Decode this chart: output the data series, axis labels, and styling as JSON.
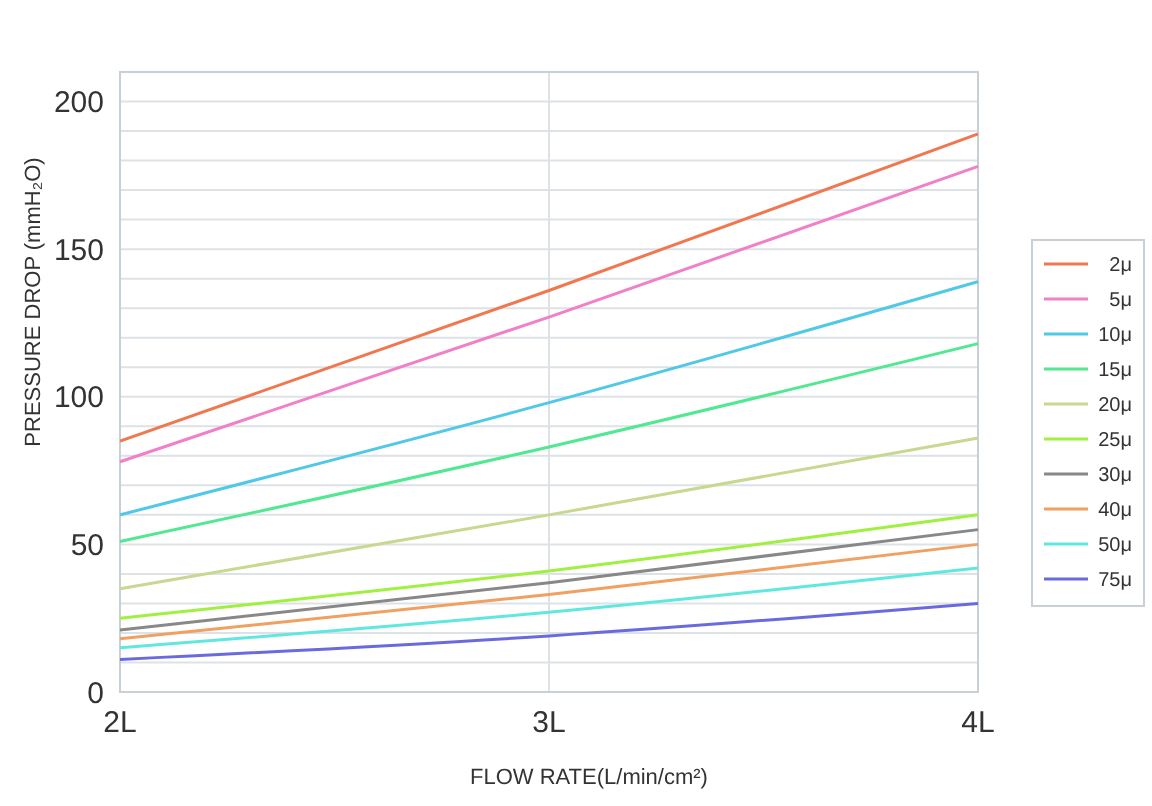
{
  "chart_data": {
    "type": "line",
    "xlabel": "FLOW RATE(L/min/cm²)",
    "ylabel": "PRESSURE DROP (mmH₂O)",
    "x": [
      2,
      3,
      4
    ],
    "xlim": [
      2,
      4
    ],
    "xticks": [
      {
        "value": 2,
        "label": "2L"
      },
      {
        "value": 3,
        "label": "3L"
      },
      {
        "value": 4,
        "label": "4L"
      }
    ],
    "ylim": [
      0,
      210
    ],
    "yticks": [
      0,
      {
        "value": 10,
        "label": null
      },
      {
        "value": 20,
        "label": null
      },
      {
        "value": 30,
        "label": null
      },
      {
        "value": 40,
        "label": null
      },
      50,
      {
        "value": 60,
        "label": null
      },
      {
        "value": 70,
        "label": null
      },
      {
        "value": 80,
        "label": null
      },
      {
        "value": 90,
        "label": null
      },
      100,
      {
        "value": 110,
        "label": null
      },
      {
        "value": 120,
        "label": null
      },
      {
        "value": 130,
        "label": null
      },
      {
        "value": 140,
        "label": null
      },
      150,
      {
        "value": 160,
        "label": null
      },
      {
        "value": 170,
        "label": null
      },
      {
        "value": 180,
        "label": null
      },
      {
        "value": 190,
        "label": null
      },
      200
    ],
    "grid": true,
    "legend": "right",
    "marker": "none",
    "line_style": "solid",
    "series": [
      {
        "name": "2μ",
        "color": "#f07850",
        "values": [
          85,
          136,
          189
        ]
      },
      {
        "name": "5μ",
        "color": "#f080c8",
        "values": [
          78,
          127,
          178
        ]
      },
      {
        "name": "10μ",
        "color": "#50c8e8",
        "values": [
          60,
          98,
          139
        ]
      },
      {
        "name": "15μ",
        "color": "#50e890",
        "values": [
          51,
          83,
          118
        ]
      },
      {
        "name": "20μ",
        "color": "#c8d890",
        "values": [
          35,
          60,
          86
        ]
      },
      {
        "name": "25μ",
        "color": "#a0f040",
        "values": [
          25,
          41,
          60
        ]
      },
      {
        "name": "30μ",
        "color": "#888888",
        "values": [
          21,
          37,
          55
        ]
      },
      {
        "name": "40μ",
        "color": "#f0a060",
        "values": [
          18,
          33,
          50
        ]
      },
      {
        "name": "50μ",
        "color": "#60e8e0",
        "values": [
          15,
          27,
          42
        ]
      },
      {
        "name": "75μ",
        "color": "#6a6ae0",
        "values": [
          11,
          19,
          30
        ]
      }
    ]
  }
}
